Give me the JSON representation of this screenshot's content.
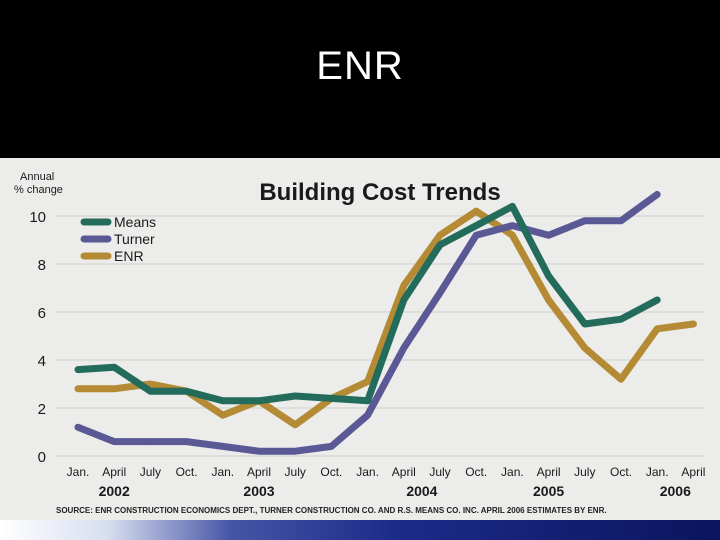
{
  "slide": {
    "title": "ENR"
  },
  "colors": {
    "background": "#000000",
    "figure_bg": "#ececea",
    "grid": "#cfd2cf",
    "means": "#236b5a",
    "turner": "#5b5896",
    "enr": "#b48a35"
  },
  "chart_data": {
    "type": "line",
    "title": "Building Cost Trends",
    "ylabel": "Annual % change",
    "ylabel_lines": [
      "Annual",
      "% change"
    ],
    "ylim": [
      0,
      10.5
    ],
    "yticks": [
      0,
      2,
      4,
      6,
      8,
      10
    ],
    "grid": true,
    "legend_position": "top-left",
    "x": [
      "Jan. 2002",
      "April 2002",
      "July 2002",
      "Oct. 2002",
      "Jan. 2003",
      "April 2003",
      "July 2003",
      "Oct. 2003",
      "Jan. 2004",
      "April 2004",
      "July 2004",
      "Oct. 2004",
      "Jan. 2005",
      "April 2005",
      "July 2005",
      "Oct. 2005",
      "Jan. 2006",
      "April 2006"
    ],
    "tick_labels": [
      "Jan.",
      "April",
      "July",
      "Oct.",
      "Jan.",
      "April",
      "July",
      "Oct.",
      "Jan.",
      "April",
      "July",
      "Oct.",
      "Jan.",
      "April",
      "July",
      "Oct.",
      "Jan.",
      "April"
    ],
    "year_labels": [
      {
        "label": "2002",
        "index": 1
      },
      {
        "label": "2003",
        "index": 5
      },
      {
        "label": "2004",
        "index": 9.5
      },
      {
        "label": "2005",
        "index": 13
      },
      {
        "label": "2006",
        "index": 16.5
      }
    ],
    "series": [
      {
        "name": "Means",
        "color": "#236b5a",
        "values": [
          3.6,
          3.7,
          2.7,
          2.7,
          2.3,
          2.3,
          2.5,
          2.4,
          2.3,
          6.5,
          8.8,
          9.6,
          10.4,
          7.5,
          5.5,
          5.7,
          6.5,
          null
        ]
      },
      {
        "name": "Turner",
        "color": "#5b5896",
        "values": [
          1.2,
          0.6,
          0.6,
          0.6,
          0.4,
          0.2,
          0.2,
          0.4,
          1.7,
          4.5,
          6.8,
          9.2,
          9.6,
          9.2,
          9.8,
          9.8,
          10.9,
          null
        ]
      },
      {
        "name": "ENR",
        "color": "#b48a35",
        "values": [
          2.8,
          2.8,
          3.0,
          2.7,
          1.7,
          2.3,
          1.3,
          2.4,
          3.1,
          7.1,
          9.2,
          10.2,
          9.2,
          6.5,
          4.5,
          3.2,
          5.3,
          5.5
        ]
      }
    ],
    "source": "SOURCE: ENR CONSTRUCTION ECONOMICS DEPT., TURNER CONSTRUCTION CO. AND R.S. MEANS CO. INC. APRIL 2006 ESTIMATES BY ENR."
  }
}
